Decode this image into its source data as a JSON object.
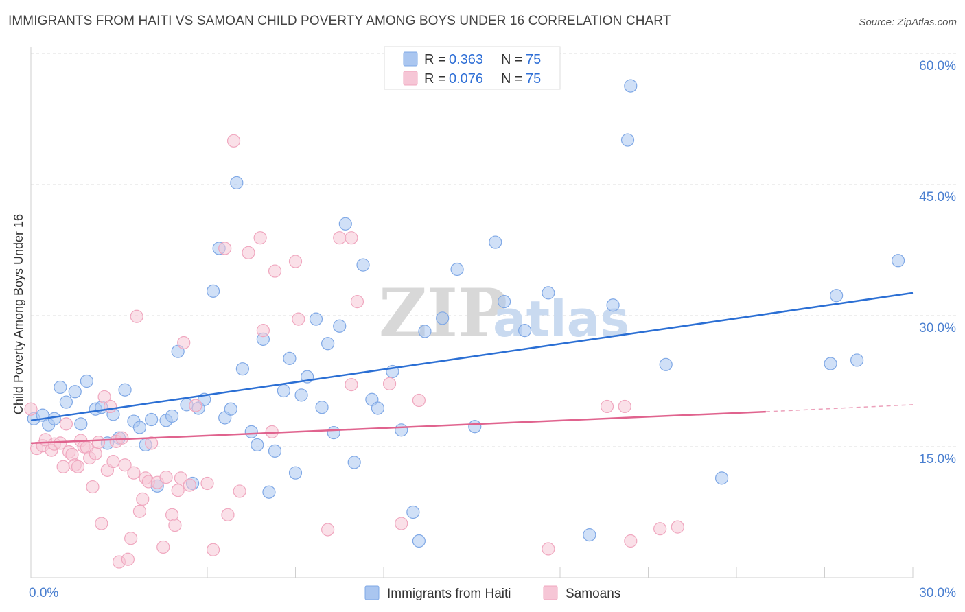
{
  "title": "IMMIGRANTS FROM HAITI VS SAMOAN CHILD POVERTY AMONG BOYS UNDER 16 CORRELATION CHART",
  "source": "Source: ZipAtlas.com",
  "watermark": {
    "zip": "ZIP",
    "atlas": "atlas"
  },
  "chart_data": {
    "type": "scatter",
    "title": "IMMIGRANTS FROM HAITI VS SAMOAN CHILD POVERTY AMONG BOYS UNDER 16 CORRELATION CHART",
    "ylabel": "Child Poverty Among Boys Under 16",
    "xlim": [
      0,
      30
    ],
    "ylim": [
      0,
      60
    ],
    "x_tick_labels": [
      "0.0%",
      "30.0%"
    ],
    "y_ticks": [
      15,
      30,
      45,
      60
    ],
    "y_tick_labels": [
      "15.0%",
      "30.0%",
      "45.0%",
      "60.0%"
    ],
    "grid": true,
    "legend_placement": "top-center",
    "series": [
      {
        "name": "Immigrants from Haiti",
        "color": "#7fa8e6",
        "fill": "#aac6f0",
        "line_color": "#2b6fd4",
        "R": "0.363",
        "N": "75",
        "trend": {
          "x": [
            0,
            30
          ],
          "y": [
            18.0,
            32.6
          ]
        },
        "points": [
          [
            0.1,
            18.2
          ],
          [
            0.4,
            18.6
          ],
          [
            0.6,
            17.5
          ],
          [
            0.8,
            18.2
          ],
          [
            1.0,
            21.8
          ],
          [
            1.2,
            20.1
          ],
          [
            1.5,
            21.3
          ],
          [
            1.7,
            17.6
          ],
          [
            1.9,
            22.5
          ],
          [
            2.2,
            19.3
          ],
          [
            2.4,
            19.5
          ],
          [
            2.6,
            15.4
          ],
          [
            2.8,
            18.7
          ],
          [
            3.0,
            16.0
          ],
          [
            3.2,
            21.5
          ],
          [
            3.5,
            17.9
          ],
          [
            3.7,
            17.2
          ],
          [
            3.9,
            15.2
          ],
          [
            4.1,
            18.1
          ],
          [
            4.3,
            10.5
          ],
          [
            4.6,
            18.0
          ],
          [
            4.8,
            18.5
          ],
          [
            5.0,
            25.9
          ],
          [
            5.3,
            19.8
          ],
          [
            5.5,
            10.8
          ],
          [
            5.7,
            19.4
          ],
          [
            5.9,
            20.4
          ],
          [
            6.2,
            32.8
          ],
          [
            6.4,
            37.7
          ],
          [
            6.6,
            18.3
          ],
          [
            6.8,
            19.3
          ],
          [
            7.0,
            45.2
          ],
          [
            7.2,
            23.9
          ],
          [
            7.5,
            16.7
          ],
          [
            7.7,
            15.2
          ],
          [
            7.9,
            27.3
          ],
          [
            8.1,
            9.8
          ],
          [
            8.3,
            14.5
          ],
          [
            8.6,
            21.4
          ],
          [
            8.8,
            25.1
          ],
          [
            9.0,
            12.0
          ],
          [
            9.2,
            20.9
          ],
          [
            9.4,
            23.0
          ],
          [
            9.7,
            29.6
          ],
          [
            9.9,
            19.5
          ],
          [
            10.1,
            26.8
          ],
          [
            10.3,
            16.6
          ],
          [
            10.5,
            28.8
          ],
          [
            10.7,
            40.5
          ],
          [
            11.0,
            13.2
          ],
          [
            11.3,
            35.8
          ],
          [
            11.6,
            20.4
          ],
          [
            11.8,
            19.4
          ],
          [
            12.3,
            23.6
          ],
          [
            12.6,
            16.9
          ],
          [
            13.0,
            7.5
          ],
          [
            13.2,
            4.2
          ],
          [
            13.4,
            28.2
          ],
          [
            14.0,
            29.7
          ],
          [
            14.5,
            35.3
          ],
          [
            15.1,
            17.3
          ],
          [
            15.8,
            38.4
          ],
          [
            16.1,
            31.6
          ],
          [
            16.8,
            28.3
          ],
          [
            17.6,
            32.6
          ],
          [
            19.0,
            4.9
          ],
          [
            19.8,
            31.2
          ],
          [
            20.3,
            50.1
          ],
          [
            20.4,
            56.3
          ],
          [
            21.6,
            24.4
          ],
          [
            23.5,
            11.4
          ],
          [
            27.2,
            24.5
          ],
          [
            27.4,
            32.3
          ],
          [
            28.1,
            24.9
          ],
          [
            29.5,
            36.3
          ]
        ]
      },
      {
        "name": "Samoans",
        "color": "#f0a7bf",
        "fill": "#f6c6d6",
        "line_color": "#e0638e",
        "R": "0.076",
        "N": "75",
        "trend": {
          "x": [
            0,
            25
          ],
          "y": [
            15.4,
            19.0
          ]
        },
        "trend_dashed": {
          "x": [
            25,
            30
          ],
          "y": [
            19.0,
            19.8
          ]
        },
        "points": [
          [
            0.0,
            19.3
          ],
          [
            0.2,
            14.8
          ],
          [
            0.4,
            15.1
          ],
          [
            0.5,
            15.8
          ],
          [
            0.7,
            14.6
          ],
          [
            0.8,
            15.3
          ],
          [
            1.0,
            15.4
          ],
          [
            1.1,
            12.7
          ],
          [
            1.2,
            17.6
          ],
          [
            1.3,
            14.4
          ],
          [
            1.4,
            14.1
          ],
          [
            1.5,
            12.9
          ],
          [
            1.6,
            12.7
          ],
          [
            1.7,
            15.7
          ],
          [
            1.8,
            15.0
          ],
          [
            1.9,
            14.9
          ],
          [
            2.0,
            13.7
          ],
          [
            2.1,
            10.4
          ],
          [
            2.2,
            14.2
          ],
          [
            2.3,
            15.5
          ],
          [
            2.4,
            6.2
          ],
          [
            2.5,
            20.7
          ],
          [
            2.6,
            12.3
          ],
          [
            2.7,
            19.6
          ],
          [
            2.8,
            13.3
          ],
          [
            2.9,
            15.6
          ],
          [
            3.0,
            1.8
          ],
          [
            3.1,
            16.0
          ],
          [
            3.2,
            12.9
          ],
          [
            3.3,
            2.1
          ],
          [
            3.4,
            4.5
          ],
          [
            3.5,
            12.0
          ],
          [
            3.6,
            29.9
          ],
          [
            3.7,
            7.6
          ],
          [
            3.8,
            9.0
          ],
          [
            3.9,
            11.4
          ],
          [
            4.0,
            11.0
          ],
          [
            4.1,
            15.4
          ],
          [
            4.3,
            10.9
          ],
          [
            4.5,
            3.5
          ],
          [
            4.6,
            11.5
          ],
          [
            4.8,
            7.2
          ],
          [
            4.9,
            6.0
          ],
          [
            5.0,
            10.0
          ],
          [
            5.1,
            11.4
          ],
          [
            5.2,
            26.9
          ],
          [
            5.4,
            10.6
          ],
          [
            5.6,
            19.7
          ],
          [
            6.0,
            10.8
          ],
          [
            6.2,
            3.2
          ],
          [
            6.6,
            37.7
          ],
          [
            6.7,
            7.2
          ],
          [
            6.9,
            50.0
          ],
          [
            7.1,
            9.9
          ],
          [
            7.4,
            37.2
          ],
          [
            7.8,
            38.9
          ],
          [
            7.9,
            28.3
          ],
          [
            8.2,
            16.7
          ],
          [
            8.3,
            35.1
          ],
          [
            9.0,
            36.2
          ],
          [
            9.1,
            29.6
          ],
          [
            10.1,
            5.5
          ],
          [
            10.5,
            38.9
          ],
          [
            10.9,
            38.9
          ],
          [
            11.1,
            31.6
          ],
          [
            12.2,
            22.2
          ],
          [
            12.6,
            6.2
          ],
          [
            13.2,
            20.3
          ],
          [
            17.6,
            3.3
          ],
          [
            19.6,
            19.6
          ],
          [
            20.2,
            19.6
          ],
          [
            20.4,
            4.2
          ],
          [
            21.4,
            5.6
          ],
          [
            22.0,
            5.8
          ],
          [
            10.9,
            22.1
          ]
        ]
      }
    ]
  },
  "legend": {
    "r_label": "R = ",
    "n_label": "N = ",
    "rows": [
      {
        "r": "0.363",
        "n": "75"
      },
      {
        "r": "0.076",
        "n": "75"
      }
    ]
  },
  "bottom_legend": [
    {
      "label": "Immigrants from Haiti"
    },
    {
      "label": "Samoans"
    }
  ]
}
